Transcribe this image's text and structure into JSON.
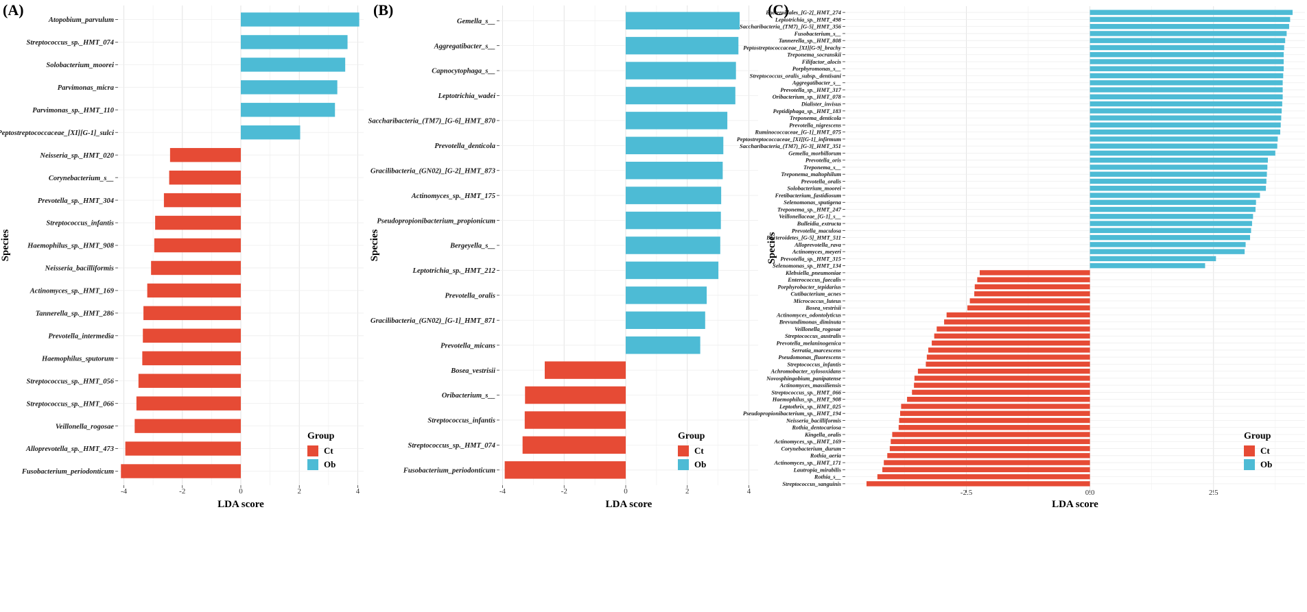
{
  "panels": [
    {
      "label": "(A)"
    },
    {
      "label": "(B)"
    },
    {
      "label": "(C)"
    }
  ],
  "legend": {
    "title": "Group",
    "items": [
      {
        "name": "Ct",
        "color": "#E64B35"
      },
      {
        "name": "Ob",
        "color": "#4DBBD5"
      }
    ]
  },
  "chart_data": [
    {
      "type": "bar",
      "orientation": "horizontal",
      "title": "(A)",
      "xlabel": "LDA score",
      "ylabel": "Species",
      "xlim": [
        -4.2,
        4.2
      ],
      "xticks": [
        -4,
        -2,
        0,
        2,
        4
      ],
      "categories": [
        "Atopobium_parvulum",
        "Streptococcus_sp._HMT_074",
        "Solobacterium_moorei",
        "Parvimonas_micra",
        "Parvimonas_sp._HMT_110",
        "Peptostreptococcaceae_[XI][G-1]_sulci",
        "Neisseria_sp._HMT_020",
        "Corynebacterium_s__",
        "Prevotella_sp._HMT_304",
        "Streptococcus_infantis",
        "Haemophilus_sp._HMT_908",
        "Neisseria_bacilliformis",
        "Actinomyces_sp._HMT_169",
        "Tannerella_sp._HMT_286",
        "Prevotella_intermedia",
        "Haemophilus_sputorum",
        "Streptococcus_sp._HMT_056",
        "Streptococcus_sp._HMT_066",
        "Veillonella_rogosae",
        "Alloprevotella_sp._HMT_473",
        "Fusobacterium_periodonticum"
      ],
      "values": [
        4.05,
        3.65,
        3.57,
        3.3,
        3.22,
        2.03,
        -2.42,
        -2.45,
        -2.63,
        -2.93,
        -2.96,
        -3.07,
        -3.2,
        -3.33,
        -3.35,
        -3.37,
        -3.5,
        -3.57,
        -3.63,
        -3.95,
        -4.1
      ],
      "groups": [
        "Ob",
        "Ob",
        "Ob",
        "Ob",
        "Ob",
        "Ob",
        "Ct",
        "Ct",
        "Ct",
        "Ct",
        "Ct",
        "Ct",
        "Ct",
        "Ct",
        "Ct",
        "Ct",
        "Ct",
        "Ct",
        "Ct",
        "Ct",
        "Ct"
      ]
    },
    {
      "type": "bar",
      "orientation": "horizontal",
      "title": "(B)",
      "xlabel": "LDA score",
      "ylabel": "Species",
      "xlim": [
        -4.1,
        4.3
      ],
      "xticks": [
        -4,
        -2,
        0,
        2,
        4
      ],
      "categories": [
        "Gemella_s__",
        "Aggregatibacter_s__",
        "Capnocytophaga_s__",
        "Leptotrichia_wadei",
        "Saccharibacteria_(TM7)_[G-6]_HMT_870",
        "Prevotella_denticola",
        "Gracilibacteria_(GN02)_[G-2]_HMT_873",
        "Actinomyces_sp._HMT_175",
        "Pseudopropionibacterium_propionicum",
        "Bergeyella_s__",
        "Leptotrichia_sp._HMT_212",
        "Prevotella_oralis",
        "Gracilibacteria_(GN02)_[G-1]_HMT_871",
        "Prevotella_micans",
        "Bosea_vestrisii",
        "Oribacterium_s__",
        "Streptococcus_infantis",
        "Streptococcus_sp._HMT_074",
        "Fusobacterium_periodonticum"
      ],
      "values": [
        3.7,
        3.66,
        3.58,
        3.56,
        3.3,
        3.17,
        3.15,
        3.1,
        3.09,
        3.07,
        3.01,
        2.63,
        2.58,
        2.42,
        -2.63,
        -3.27,
        -3.28,
        -3.35,
        -3.93
      ],
      "groups": [
        "Ob",
        "Ob",
        "Ob",
        "Ob",
        "Ob",
        "Ob",
        "Ob",
        "Ob",
        "Ob",
        "Ob",
        "Ob",
        "Ob",
        "Ob",
        "Ob",
        "Ct",
        "Ct",
        "Ct",
        "Ct",
        "Ct"
      ]
    },
    {
      "type": "bar",
      "orientation": "horizontal",
      "title": "(C)",
      "xlabel": "LDA score",
      "ylabel": "Species",
      "xlim": [
        -4.95,
        4.35
      ],
      "xticks": [
        -2.5,
        0.0,
        2.5
      ],
      "xtick_labels": [
        "-2.5",
        "0.0",
        "2.5"
      ],
      "categories": [
        "Bacteroidales_[G-2]_HMT_274",
        "Leptotrichia_sp._HMT_498",
        "Saccharibacteria_(TM7)_[G-5]_HMT_356",
        "Fusobacterium_s__",
        "Tannerella_sp._HMT_808",
        "Peptostreptococcaceae_[XI][G-9]_brachy",
        "Treponema_socranskii",
        "Filifactor_alocis",
        "Porphyromonas_s__",
        "Streptococcus_oralis_subsp._dentisani",
        "Aggregatibacter_s__",
        "Prevotella_sp._HMT_317",
        "Oribacterium_sp._HMT_078",
        "Dialister_invisus",
        "Peptidiphaga_sp._HMT_183",
        "Treponema_denticola",
        "Prevotella_nigrescens",
        "Ruminococcaceae_[G-1]_HMT_075",
        "Peptostreptococcaceae_[XI][G-1]_infirmum",
        "Saccharibacteria_(TM7)_[G-3]_HMT_351",
        "Gemella_morbillorum",
        "Prevotella_oris",
        "Treponema_s__",
        "Treponema_maltophilum",
        "Prevotella_oralis",
        "Solobacterium_moorei",
        "Fretibacterium_fastidiosum",
        "Selenomonas_sputigena",
        "Treponema_sp._HMT_247",
        "Veillonellaceae_[G-1]_s__",
        "Bulleidia_extructa",
        "Prevotella_maculosa",
        "Bacteroidetes_[G-5]_HMT_511",
        "Alloprevotella_rava",
        "Actinomyces_meyeri",
        "Prevotella_sp._HMT_315",
        "Selenomonas_sp._HMT_134",
        "Klebsiella_pneumoniae",
        "Enterococcus_faecalis",
        "Porphyrobacter_tepidarius",
        "Cutibacterium_acnes",
        "Micrococcus_luteus",
        "Bosea_vestrisii",
        "Actinomyces_odontolyticus",
        "Brevundimonas_diminuta",
        "Veillonella_rogosae",
        "Streptococcus_australis",
        "Prevotella_melaninogenica",
        "Serratia_marcescens",
        "Pseudomonas_fluorescens",
        "Streptococcus_infantis",
        "Achromobacter_xylosoxidans",
        "Novosphingobium_panipatense",
        "Actinomyces_massiliensis",
        "Streptococcus_sp._HMT_066",
        "Haemophilus_sp._HMT_908",
        "Leptothrix_sp._HMT_025",
        "Pseudopropionibacterium_sp._HMT_194",
        "Neisseria_bacilliformis",
        "Rothia_dentocariosa",
        "Kingella_oralis",
        "Actinomyces_sp._HMT_169",
        "Corynebacterium_durum",
        "Rothia_aeria",
        "Actinomyces_sp._HMT_171",
        "Lautropia_mirabilis",
        "Rothia_s__",
        "Streptococcus_sanguinis"
      ],
      "values": [
        4.1,
        4.05,
        4.03,
        3.98,
        3.95,
        3.93,
        3.92,
        3.92,
        3.92,
        3.91,
        3.9,
        3.9,
        3.9,
        3.89,
        3.88,
        3.87,
        3.86,
        3.85,
        3.8,
        3.79,
        3.75,
        3.6,
        3.59,
        3.58,
        3.57,
        3.56,
        3.44,
        3.36,
        3.35,
        3.3,
        3.28,
        3.26,
        3.24,
        3.15,
        3.13,
        2.55,
        2.33,
        -2.23,
        -2.28,
        -2.33,
        -2.34,
        -2.43,
        -2.48,
        -2.9,
        -2.95,
        -3.1,
        -3.15,
        -3.2,
        -3.27,
        -3.3,
        -3.32,
        -3.48,
        -3.55,
        -3.56,
        -3.6,
        -3.7,
        -3.82,
        -3.84,
        -3.86,
        -3.87,
        -4.0,
        -4.03,
        -4.05,
        -4.1,
        -4.17,
        -4.2,
        -4.3,
        -4.52
      ],
      "split_index": 37
    }
  ]
}
